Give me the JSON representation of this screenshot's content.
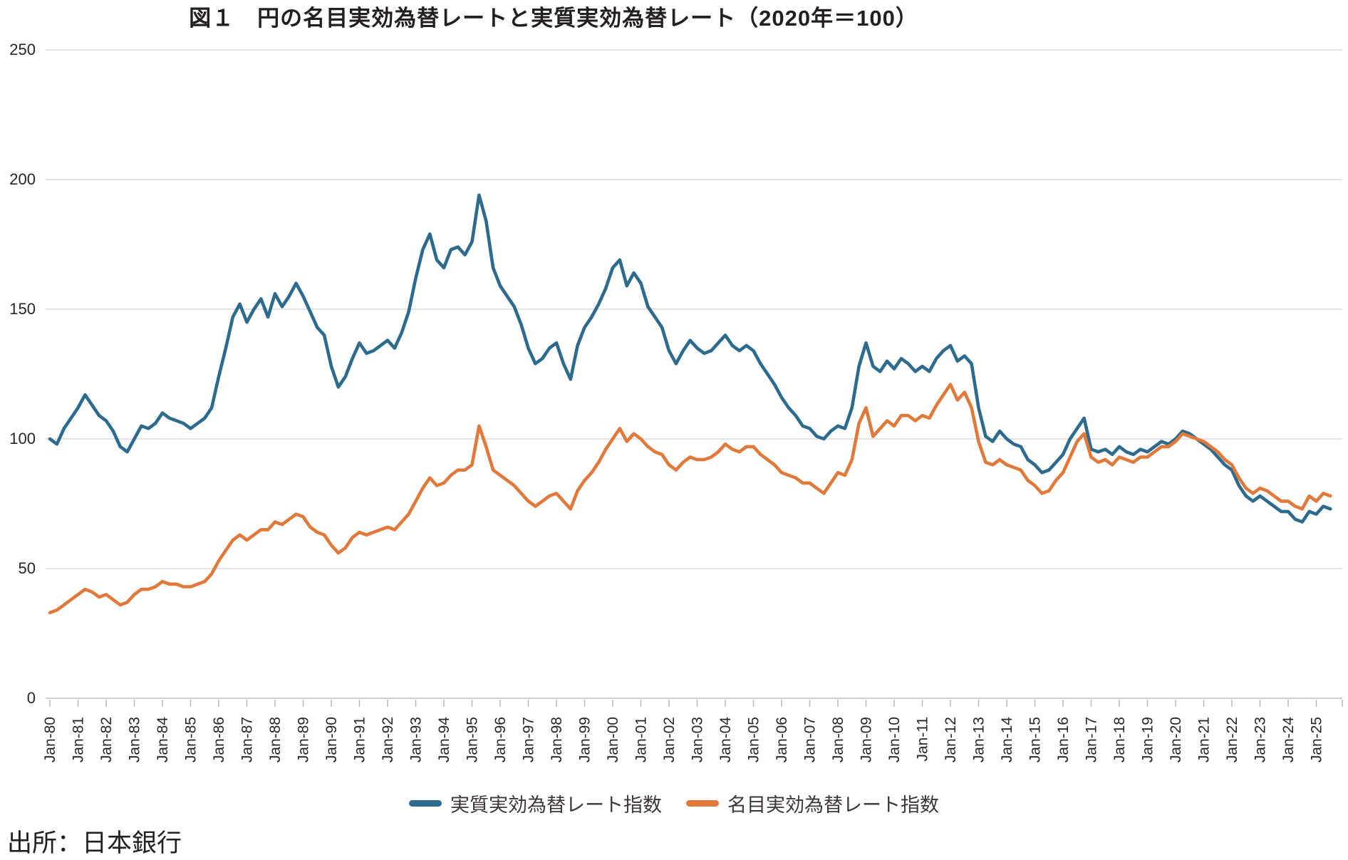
{
  "title": "図１　円の名目実効為替レートと実質実効為替レート（2020年＝100）",
  "source": "出所：日本銀行",
  "legend": [
    {
      "label": "実質実効為替レート指数",
      "color": "#2c6b8d"
    },
    {
      "label": "名目実効為替レート指数",
      "color": "#e0793a"
    }
  ],
  "y_axis": {
    "tick_labels": [
      "0",
      "50",
      "100",
      "150",
      "200",
      "250"
    ]
  },
  "chart_data": {
    "type": "line",
    "title": "図１　円の名目実効為替レートと実質実効為替レート（2020年＝100）",
    "xlabel": "",
    "ylabel": "",
    "ylim": [
      0,
      250
    ],
    "y_ticks": [
      0,
      50,
      100,
      150,
      200,
      250
    ],
    "grid": "horizontal",
    "legend_position": "bottom",
    "x_start_year": 1980,
    "x_step_years": 0.25,
    "x_tick_labels": [
      "Jan-80",
      "Jan-81",
      "Jan-82",
      "Jan-83",
      "Jan-84",
      "Jan-85",
      "Jan-86",
      "Jan-87",
      "Jan-88",
      "Jan-89",
      "Jan-90",
      "Jan-91",
      "Jan-92",
      "Jan-93",
      "Jan-94",
      "Jan-95",
      "Jan-96",
      "Jan-97",
      "Jan-98",
      "Jan-99",
      "Jan-00",
      "Jan-01",
      "Jan-02",
      "Jan-03",
      "Jan-04",
      "Jan-05",
      "Jan-06",
      "Jan-07",
      "Jan-08",
      "Jan-09",
      "Jan-10",
      "Jan-11",
      "Jan-12",
      "Jan-13",
      "Jan-14",
      "Jan-15",
      "Jan-16",
      "Jan-17",
      "Jan-18",
      "Jan-19",
      "Jan-20",
      "Jan-21",
      "Jan-22",
      "Jan-23",
      "Jan-24",
      "Jan-25"
    ],
    "series": [
      {
        "name": "実質実効為替レート指数",
        "color": "#2c6b8d",
        "values": [
          100,
          98,
          104,
          108,
          112,
          117,
          113,
          109,
          107,
          103,
          97,
          95,
          100,
          105,
          104,
          106,
          110,
          108,
          107,
          106,
          104,
          106,
          108,
          112,
          124,
          135,
          147,
          152,
          145,
          150,
          154,
          147,
          156,
          151,
          155,
          160,
          155,
          149,
          143,
          140,
          128,
          120,
          124,
          131,
          137,
          133,
          134,
          136,
          138,
          135,
          141,
          149,
          162,
          173,
          179,
          169,
          166,
          173,
          174,
          171,
          176,
          194,
          184,
          166,
          159,
          155,
          151,
          144,
          135,
          129,
          131,
          135,
          137,
          129,
          123,
          136,
          143,
          147,
          152,
          158,
          166,
          169,
          159,
          164,
          160,
          151,
          147,
          143,
          134,
          129,
          134,
          138,
          135,
          133,
          134,
          137,
          140,
          136,
          134,
          136,
          134,
          129,
          125,
          121,
          116,
          112,
          109,
          105,
          104,
          101,
          100,
          103,
          105,
          104,
          112,
          128,
          137,
          128,
          126,
          130,
          127,
          131,
          129,
          126,
          128,
          126,
          131,
          134,
          136,
          130,
          132,
          129,
          112,
          101,
          99,
          103,
          100,
          98,
          97,
          92,
          90,
          87,
          88,
          91,
          94,
          100,
          104,
          108,
          96,
          95,
          96,
          94,
          97,
          95,
          94,
          96,
          95,
          97,
          99,
          98,
          100,
          103,
          102,
          100,
          98,
          96,
          93,
          90,
          88,
          82,
          78,
          76,
          78,
          76,
          74,
          72,
          72,
          69,
          68,
          72,
          71,
          74,
          73
        ]
      },
      {
        "name": "名目実効為替レート指数",
        "color": "#e0793a",
        "values": [
          33,
          34,
          36,
          38,
          40,
          42,
          41,
          39,
          40,
          38,
          36,
          37,
          40,
          42,
          42,
          43,
          45,
          44,
          44,
          43,
          43,
          44,
          45,
          48,
          53,
          57,
          61,
          63,
          61,
          63,
          65,
          65,
          68,
          67,
          69,
          71,
          70,
          66,
          64,
          63,
          59,
          56,
          58,
          62,
          64,
          63,
          64,
          65,
          66,
          65,
          68,
          71,
          76,
          81,
          85,
          82,
          83,
          86,
          88,
          88,
          90,
          105,
          97,
          88,
          86,
          84,
          82,
          79,
          76,
          74,
          76,
          78,
          79,
          76,
          73,
          80,
          84,
          87,
          91,
          96,
          100,
          104,
          99,
          102,
          100,
          97,
          95,
          94,
          90,
          88,
          91,
          93,
          92,
          92,
          93,
          95,
          98,
          96,
          95,
          97,
          97,
          94,
          92,
          90,
          87,
          86,
          85,
          83,
          83,
          81,
          79,
          83,
          87,
          86,
          92,
          106,
          112,
          101,
          104,
          107,
          105,
          109,
          109,
          107,
          109,
          108,
          113,
          117,
          121,
          115,
          118,
          112,
          99,
          91,
          90,
          92,
          90,
          89,
          88,
          84,
          82,
          79,
          80,
          84,
          87,
          93,
          99,
          102,
          93,
          91,
          92,
          90,
          93,
          92,
          91,
          93,
          93,
          95,
          97,
          97,
          99,
          102,
          101,
          100,
          99,
          97,
          95,
          92,
          90,
          85,
          81,
          79,
          81,
          80,
          78,
          76,
          76,
          74,
          73,
          78,
          76,
          79,
          78
        ]
      }
    ],
    "source_note": "出所：日本銀行"
  }
}
